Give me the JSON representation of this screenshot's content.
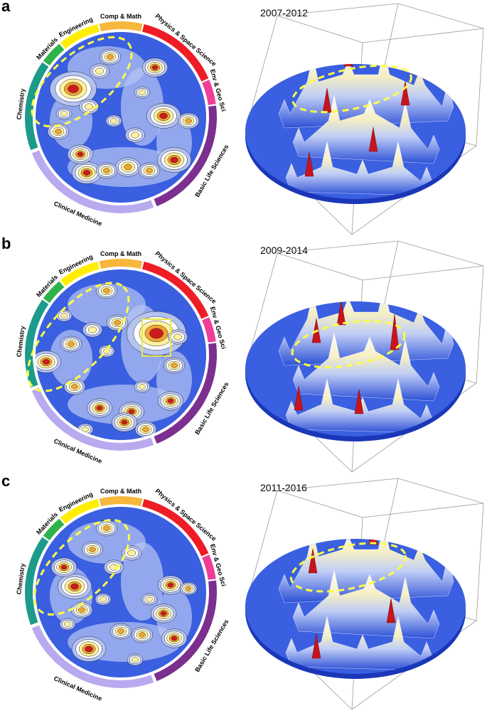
{
  "panels": [
    {
      "letter": "a",
      "period": "2007-2012"
    },
    {
      "letter": "b",
      "period": "2009-2014"
    },
    {
      "letter": "c",
      "period": "2011-2016"
    }
  ],
  "fields": [
    {
      "label": "Comp & Math",
      "color": "#f6b73c"
    },
    {
      "label": "Physics & Space Science",
      "color": "#ee1c25"
    },
    {
      "label": "Env & Geo Sci",
      "color": "#ee3e97"
    },
    {
      "label": "Basic Life Sciences",
      "color": "#7b2f8e"
    },
    {
      "label": "Clinical Medicine",
      "color": "#b9a9ef"
    },
    {
      "label": "Chemistry",
      "color": "#1c9a8b"
    },
    {
      "label": "Materials",
      "color": "#2eb34a"
    },
    {
      "label": "Engineering",
      "color": "#ffee00"
    }
  ],
  "colors": {
    "map_background": "#3a5fe0",
    "contour_low": "#b8c6f3",
    "contour_mid": "#ffffff",
    "contour_high": "#fff299",
    "peak_orange": "#f0a030",
    "peak_red": "#c8141c",
    "dashed_highlight": "#ffff44"
  }
}
